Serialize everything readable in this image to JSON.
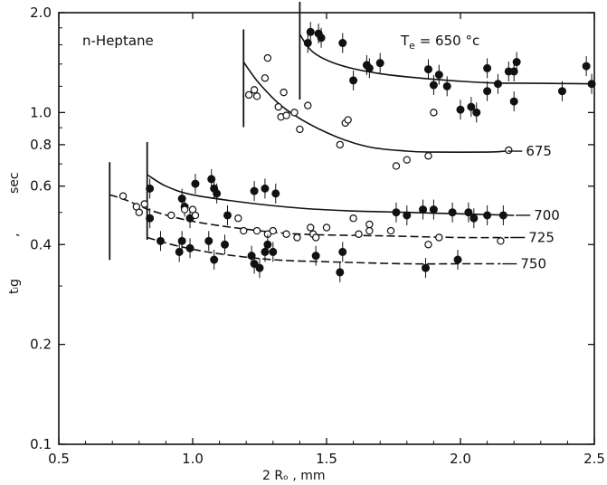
{
  "chart_data": {
    "type": "scatter",
    "xlabel": "2 Rₒ     ,     mm",
    "ylabel_main": "tᵢg",
    "ylabel_sep": ",",
    "ylabel_unit": "sec",
    "xlim": [
      0.5,
      2.5
    ],
    "ylim": [
      0.1,
      2.0
    ],
    "yscale": "log",
    "xticks": [
      0.5,
      1.0,
      1.5,
      2.0,
      2.5
    ],
    "xtick_labels": [
      "0.5",
      "1.0",
      "1.5",
      "2.0",
      "2.5"
    ],
    "yticks": [
      0.1,
      0.2,
      0.4,
      0.6,
      0.8,
      1.0,
      2.0
    ],
    "ytick_labels": [
      "0.1",
      "0.2",
      "0.4",
      "0.6",
      "0.8",
      "1.0",
      "2.0"
    ],
    "annotations": {
      "fuel": "n-Heptane",
      "temp_prefix": "T",
      "temp_sub": "e",
      "temp_suffix": " = 650 °c"
    },
    "series": [
      {
        "name": "650",
        "marker": "filled",
        "cutoff_x": 1.4,
        "curve": [
          [
            1.4,
            1.72
          ],
          [
            1.45,
            1.52
          ],
          [
            1.55,
            1.39
          ],
          [
            1.7,
            1.31
          ],
          [
            1.9,
            1.26
          ],
          [
            2.1,
            1.23
          ],
          [
            2.3,
            1.225
          ],
          [
            2.5,
            1.22
          ]
        ],
        "points": [
          [
            1.43,
            1.62
          ],
          [
            1.44,
            1.75
          ],
          [
            1.47,
            1.73
          ],
          [
            1.48,
            1.68
          ],
          [
            1.56,
            1.62
          ],
          [
            1.6,
            1.25
          ],
          [
            1.65,
            1.39
          ],
          [
            1.66,
            1.36
          ],
          [
            1.7,
            1.41
          ],
          [
            1.88,
            1.35
          ],
          [
            1.9,
            1.21
          ],
          [
            1.92,
            1.3
          ],
          [
            1.95,
            1.2
          ],
          [
            2.0,
            1.02
          ],
          [
            2.04,
            1.04
          ],
          [
            2.06,
            1.0
          ],
          [
            2.1,
            1.16
          ],
          [
            2.1,
            1.36
          ],
          [
            2.14,
            1.22
          ],
          [
            2.18,
            1.33
          ],
          [
            2.2,
            1.33
          ],
          [
            2.21,
            1.42
          ],
          [
            2.2,
            1.08
          ],
          [
            2.38,
            1.16
          ],
          [
            2.47,
            1.38
          ],
          [
            2.49,
            1.22
          ]
        ]
      },
      {
        "name": "675",
        "marker": "open",
        "cutoff_x": 1.19,
        "curve": [
          [
            1.19,
            1.42
          ],
          [
            1.25,
            1.22
          ],
          [
            1.35,
            1.02
          ],
          [
            1.5,
            0.87
          ],
          [
            1.65,
            0.79
          ],
          [
            1.8,
            0.765
          ],
          [
            1.9,
            0.76
          ],
          [
            2.1,
            0.76
          ],
          [
            2.17,
            0.765
          ]
        ],
        "points": [
          [
            1.21,
            1.13
          ],
          [
            1.23,
            1.17
          ],
          [
            1.24,
            1.12
          ],
          [
            1.27,
            1.27
          ],
          [
            1.28,
            1.46
          ],
          [
            1.32,
            1.04
          ],
          [
            1.33,
            0.97
          ],
          [
            1.34,
            1.15
          ],
          [
            1.35,
            0.98
          ],
          [
            1.38,
            1.0
          ],
          [
            1.4,
            0.89
          ],
          [
            1.43,
            1.05
          ],
          [
            1.55,
            0.8
          ],
          [
            1.57,
            0.93
          ],
          [
            1.58,
            0.95
          ],
          [
            1.76,
            0.69
          ],
          [
            1.8,
            0.72
          ],
          [
            1.88,
            0.74
          ],
          [
            1.9,
            1.0
          ],
          [
            2.18,
            0.77
          ]
        ]
      },
      {
        "name": "700",
        "marker": "filled",
        "cutoff_x": 0.83,
        "curve": [
          [
            0.83,
            0.65
          ],
          [
            0.9,
            0.6
          ],
          [
            1.0,
            0.565
          ],
          [
            1.2,
            0.535
          ],
          [
            1.4,
            0.515
          ],
          [
            1.6,
            0.505
          ],
          [
            1.8,
            0.5
          ],
          [
            2.0,
            0.495
          ],
          [
            2.2,
            0.49
          ]
        ],
        "points": [
          [
            0.84,
            0.59
          ],
          [
            0.84,
            0.48
          ],
          [
            0.96,
            0.55
          ],
          [
            0.97,
            0.52
          ],
          [
            0.99,
            0.48
          ],
          [
            1.01,
            0.61
          ],
          [
            1.07,
            0.63
          ],
          [
            1.08,
            0.59
          ],
          [
            1.09,
            0.57
          ],
          [
            1.13,
            0.49
          ],
          [
            1.23,
            0.58
          ],
          [
            1.27,
            0.59
          ],
          [
            1.31,
            0.57
          ],
          [
            1.76,
            0.5
          ],
          [
            1.8,
            0.49
          ],
          [
            1.86,
            0.51
          ],
          [
            1.9,
            0.51
          ],
          [
            1.97,
            0.5
          ],
          [
            2.03,
            0.5
          ],
          [
            2.05,
            0.48
          ],
          [
            2.1,
            0.49
          ],
          [
            2.16,
            0.49
          ]
        ]
      },
      {
        "name": "725",
        "marker": "open",
        "cutoff_x": 0.69,
        "curve": [
          [
            0.69,
            0.565
          ],
          [
            0.75,
            0.545
          ],
          [
            0.85,
            0.505
          ],
          [
            1.0,
            0.47
          ],
          [
            1.2,
            0.445
          ],
          [
            1.4,
            0.43
          ],
          [
            1.7,
            0.425
          ],
          [
            2.0,
            0.42
          ],
          [
            2.18,
            0.42
          ]
        ],
        "points": [
          [
            0.74,
            0.56
          ],
          [
            0.79,
            0.52
          ],
          [
            0.8,
            0.5
          ],
          [
            0.82,
            0.53
          ],
          [
            0.92,
            0.49
          ],
          [
            0.97,
            0.51
          ],
          [
            1.0,
            0.51
          ],
          [
            1.01,
            0.49
          ],
          [
            1.17,
            0.48
          ],
          [
            1.19,
            0.44
          ],
          [
            1.24,
            0.44
          ],
          [
            1.28,
            0.43
          ],
          [
            1.3,
            0.44
          ],
          [
            1.35,
            0.43
          ],
          [
            1.39,
            0.42
          ],
          [
            1.44,
            0.45
          ],
          [
            1.45,
            0.43
          ],
          [
            1.46,
            0.42
          ],
          [
            1.5,
            0.45
          ],
          [
            1.6,
            0.48
          ],
          [
            1.62,
            0.43
          ],
          [
            1.66,
            0.46
          ],
          [
            1.66,
            0.44
          ],
          [
            1.74,
            0.44
          ],
          [
            1.88,
            0.4
          ],
          [
            1.92,
            0.42
          ],
          [
            2.15,
            0.41
          ]
        ]
      },
      {
        "name": "750",
        "marker": "filled",
        "cutoff_x": null,
        "curve": [
          [
            0.83,
            0.42
          ],
          [
            0.95,
            0.395
          ],
          [
            1.1,
            0.375
          ],
          [
            1.3,
            0.36
          ],
          [
            1.5,
            0.355
          ],
          [
            1.8,
            0.35
          ],
          [
            2.0,
            0.35
          ],
          [
            2.15,
            0.35
          ]
        ],
        "points": [
          [
            0.88,
            0.41
          ],
          [
            0.95,
            0.38
          ],
          [
            0.96,
            0.41
          ],
          [
            0.99,
            0.39
          ],
          [
            1.06,
            0.41
          ],
          [
            1.08,
            0.36
          ],
          [
            1.12,
            0.4
          ],
          [
            1.22,
            0.37
          ],
          [
            1.23,
            0.35
          ],
          [
            1.25,
            0.34
          ],
          [
            1.27,
            0.38
          ],
          [
            1.28,
            0.4
          ],
          [
            1.3,
            0.38
          ],
          [
            1.46,
            0.37
          ],
          [
            1.55,
            0.33
          ],
          [
            1.56,
            0.38
          ],
          [
            1.87,
            0.34
          ],
          [
            1.99,
            0.36
          ]
        ]
      }
    ]
  }
}
